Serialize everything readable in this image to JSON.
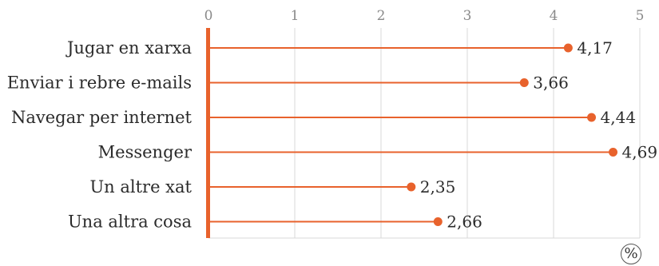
{
  "chart_data": {
    "type": "lollipop",
    "categories": [
      "Jugar en xarxa",
      "Enviar i rebre e-mails",
      "Navegar per internet",
      "Messenger",
      "Un altre xat",
      "Una altra cosa"
    ],
    "values": [
      4.17,
      3.66,
      4.44,
      4.69,
      2.35,
      2.66
    ],
    "value_labels": [
      "4,17",
      "3,66",
      "4,44",
      "4,69",
      "2,35",
      "2,66"
    ],
    "x_ticks": [
      0,
      1,
      2,
      3,
      4,
      5
    ],
    "xlim": [
      0,
      5
    ],
    "unit": "%",
    "grid": true,
    "colors": {
      "accent": "#e8622c",
      "grid": "#d9d9d9",
      "axis": "#e8622c"
    }
  }
}
